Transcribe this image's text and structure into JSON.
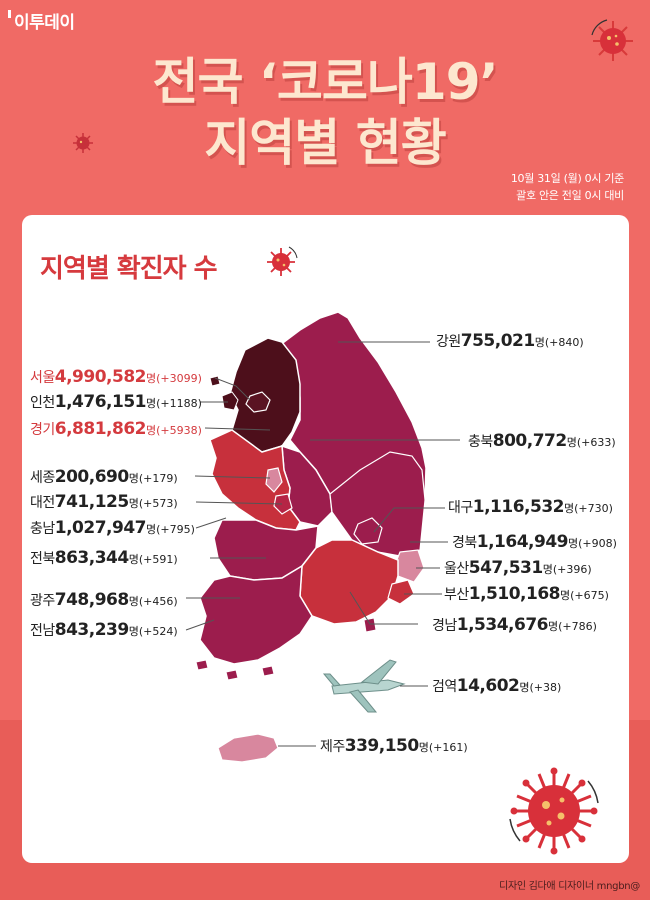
{
  "brand": "이투데이",
  "title_line1": "전국 ‘코로나19’",
  "title_line2": "지역별 현황",
  "basis_line1": "10월 31일 (월) 0시 기준",
  "basis_line2": "괄호 안은 전일 0시 대비",
  "card_title": "지역별 확진자 수",
  "credit": "디자인 김다애 디자이너 mngbn@",
  "colors": {
    "background": "#f06a65",
    "title_text": "#fde7cf",
    "highlight_text": "#d43a3e",
    "map_dark": "#4d0f1b",
    "map_magenta": "#9c1d4d",
    "map_red": "#c7303c",
    "map_pink": "#d8879e"
  },
  "regions": [
    {
      "name": "강원",
      "count": "755,021",
      "unit": "명",
      "change": "(+840)",
      "highlight": false
    },
    {
      "name": "서울",
      "count": "4,990,582",
      "unit": "명",
      "change": "(+3099)",
      "highlight": true
    },
    {
      "name": "인천",
      "count": "1,476,151",
      "unit": "명",
      "change": "(+1188)",
      "highlight": false
    },
    {
      "name": "경기",
      "count": "6,881,862",
      "unit": "명",
      "change": "(+5938)",
      "highlight": true
    },
    {
      "name": "충북",
      "count": "800,772",
      "unit": "명",
      "change": "(+633)",
      "highlight": false
    },
    {
      "name": "세종",
      "count": "200,690",
      "unit": "명",
      "change": "(+179)",
      "highlight": false
    },
    {
      "name": "대전",
      "count": "741,125",
      "unit": "명",
      "change": "(+573)",
      "highlight": false
    },
    {
      "name": "충남",
      "count": "1,027,947",
      "unit": "명",
      "change": "(+795)",
      "highlight": false
    },
    {
      "name": "대구",
      "count": "1,116,532",
      "unit": "명",
      "change": "(+730)",
      "highlight": false
    },
    {
      "name": "경북",
      "count": "1,164,949",
      "unit": "명",
      "change": "(+908)",
      "highlight": false
    },
    {
      "name": "전북",
      "count": "863,344",
      "unit": "명",
      "change": "(+591)",
      "highlight": false
    },
    {
      "name": "울산",
      "count": "547,531",
      "unit": "명",
      "change": "(+396)",
      "highlight": false
    },
    {
      "name": "부산",
      "count": "1,510,168",
      "unit": "명",
      "change": "(+675)",
      "highlight": false
    },
    {
      "name": "광주",
      "count": "748,968",
      "unit": "명",
      "change": "(+456)",
      "highlight": false
    },
    {
      "name": "경남",
      "count": "1,534,676",
      "unit": "명",
      "change": "(+786)",
      "highlight": false
    },
    {
      "name": "전남",
      "count": "843,239",
      "unit": "명",
      "change": "(+524)",
      "highlight": false
    },
    {
      "name": "검역",
      "count": "14,602",
      "unit": "명",
      "change": "(+38)",
      "highlight": false
    },
    {
      "name": "제주",
      "count": "339,150",
      "unit": "명",
      "change": "(+161)",
      "highlight": false
    }
  ]
}
